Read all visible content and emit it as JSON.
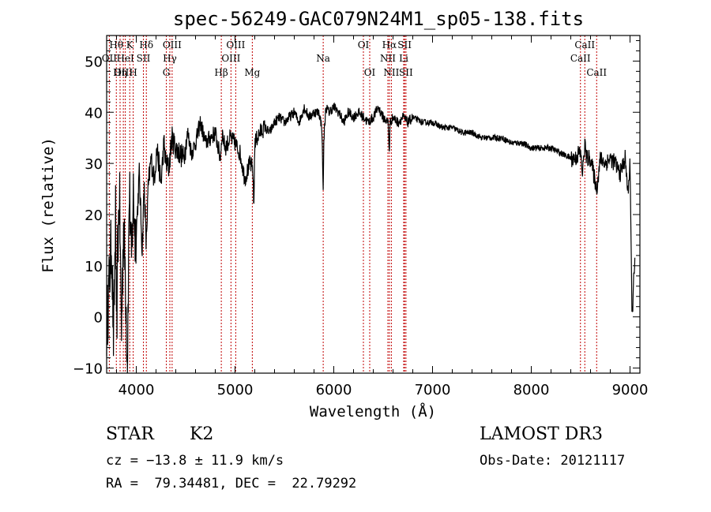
{
  "chart_data": {
    "type": "line",
    "title": "spec-56249-GAC079N24M1_sp05-138.fits",
    "xlabel": "Wavelength (Å)",
    "ylabel": "Flux (relative)",
    "xlim": [
      3700,
      9100
    ],
    "ylim": [
      -11,
      55
    ],
    "xticks": [
      4000,
      5000,
      6000,
      7000,
      8000,
      9000
    ],
    "xtick_labels": [
      "4000",
      "5000",
      "6000",
      "7000",
      "8000",
      "9000"
    ],
    "yticks": [
      -10,
      0,
      10,
      20,
      30,
      40,
      50
    ],
    "ytick_labels": [
      "−10",
      "0",
      "10",
      "20",
      "30",
      "40",
      "50"
    ],
    "series": [
      {
        "name": "flux",
        "x": [
          3700,
          3730,
          3750,
          3770,
          3790,
          3800,
          3810,
          3830,
          3850,
          3870,
          3890,
          3910,
          3930,
          3950,
          3970,
          3990,
          4010,
          4030,
          4060,
          4080,
          4100,
          4120,
          4150,
          4180,
          4210,
          4250,
          4280,
          4300,
          4330,
          4360,
          4400,
          4440,
          4480,
          4520,
          4560,
          4600,
          4650,
          4700,
          4750,
          4800,
          4850,
          4870,
          4900,
          4950,
          5000,
          5050,
          5100,
          5150,
          5180,
          5190,
          5200,
          5250,
          5300,
          5350,
          5400,
          5450,
          5500,
          5550,
          5600,
          5650,
          5700,
          5750,
          5800,
          5850,
          5880,
          5892,
          5900,
          5920,
          5950,
          6000,
          6050,
          6100,
          6150,
          6200,
          6250,
          6300,
          6350,
          6400,
          6450,
          6500,
          6550,
          6563,
          6570,
          6600,
          6650,
          6700,
          6750,
          6800,
          6900,
          7000,
          7100,
          7200,
          7300,
          7400,
          7500,
          7600,
          7700,
          7800,
          7900,
          8000,
          8100,
          8200,
          8300,
          8400,
          8450,
          8480,
          8498,
          8520,
          8542,
          8560,
          8600,
          8662,
          8700,
          8750,
          8800,
          8850,
          8900,
          8950,
          8980,
          9000,
          9020,
          9050
        ],
        "values": [
          -2,
          8,
          15,
          -5,
          20,
          -8,
          12,
          24,
          -3,
          18,
          8,
          -9,
          26,
          10,
          24,
          15,
          20,
          28,
          13,
          26,
          14,
          25,
          31,
          27,
          33,
          26,
          34,
          30,
          29,
          35,
          33,
          32,
          31,
          36,
          32,
          34,
          38,
          34,
          35,
          36,
          31,
          36,
          33,
          35,
          34,
          32,
          27,
          30,
          29,
          21,
          34,
          36,
          37,
          36,
          38,
          39,
          38,
          39,
          40,
          38,
          41,
          39,
          40,
          40,
          37,
          24,
          35,
          41,
          40,
          41,
          40,
          38,
          40,
          39,
          40,
          39,
          38,
          39,
          41,
          39,
          38,
          32,
          38,
          39,
          38,
          39,
          38,
          39,
          38,
          38,
          37,
          37,
          36,
          36,
          35,
          35,
          35,
          34,
          34,
          33,
          33,
          33,
          32,
          31,
          31,
          32,
          32,
          28,
          34,
          31,
          31,
          25,
          31,
          30,
          31,
          30,
          28,
          31,
          24,
          31,
          -1,
          13
        ]
      }
    ],
    "line_markers": [
      {
        "label": "Hθ",
        "wavelength": 3798,
        "row": 1
      },
      {
        "label": "OII",
        "wavelength": 3727,
        "row": 2
      },
      {
        "label": "Hη",
        "wavelength": 3836,
        "row": 3
      },
      {
        "label": "OIII",
        "wavelength": 3869,
        "row": 3
      },
      {
        "label": "K",
        "wavelength": 3934,
        "row": 1
      },
      {
        "label": "HeI",
        "wavelength": 3889,
        "row": 2
      },
      {
        "label": "H",
        "wavelength": 3969,
        "row": 3
      },
      {
        "label": "Hδ",
        "wavelength": 4102,
        "row": 1
      },
      {
        "label": "SII",
        "wavelength": 4072,
        "row": 2
      },
      {
        "label": "OIII",
        "wavelength": 4363,
        "row": 1
      },
      {
        "label": "Hγ",
        "wavelength": 4340,
        "row": 2
      },
      {
        "label": "G",
        "wavelength": 4304,
        "row": 3
      },
      {
        "label": "OIII",
        "wavelength": 5007,
        "row": 1
      },
      {
        "label": "OIII",
        "wavelength": 4959,
        "row": 2
      },
      {
        "label": "Hβ",
        "wavelength": 4861,
        "row": 3
      },
      {
        "label": "Mg",
        "wavelength": 5175,
        "row": 3
      },
      {
        "label": "Na",
        "wavelength": 5893,
        "row": 2
      },
      {
        "label": "OI",
        "wavelength": 6300,
        "row": 1
      },
      {
        "label": "OI",
        "wavelength": 6364,
        "row": 3
      },
      {
        "label": "Hα",
        "wavelength": 6563,
        "row": 1
      },
      {
        "label": "NII",
        "wavelength": 6548,
        "row": 2
      },
      {
        "label": "NII",
        "wavelength": 6583,
        "row": 3
      },
      {
        "label": "SII",
        "wavelength": 6717,
        "row": 1
      },
      {
        "label": "Li",
        "wavelength": 6708,
        "row": 2
      },
      {
        "label": "SII",
        "wavelength": 6731,
        "row": 3
      },
      {
        "label": "CaII",
        "wavelength": 8542,
        "row": 1
      },
      {
        "label": "CaII",
        "wavelength": 8498,
        "row": 2
      },
      {
        "label": "CaII",
        "wavelength": 8662,
        "row": 3
      }
    ]
  },
  "info": {
    "class": "STAR",
    "subclass": "K2",
    "cz": "cz = −13.8 ± 11.9 km/s",
    "coords": "RA =  79.34481, DEC =  22.79292",
    "survey": "LAMOST DR3",
    "obs_date": "Obs-Date: 20121117"
  }
}
